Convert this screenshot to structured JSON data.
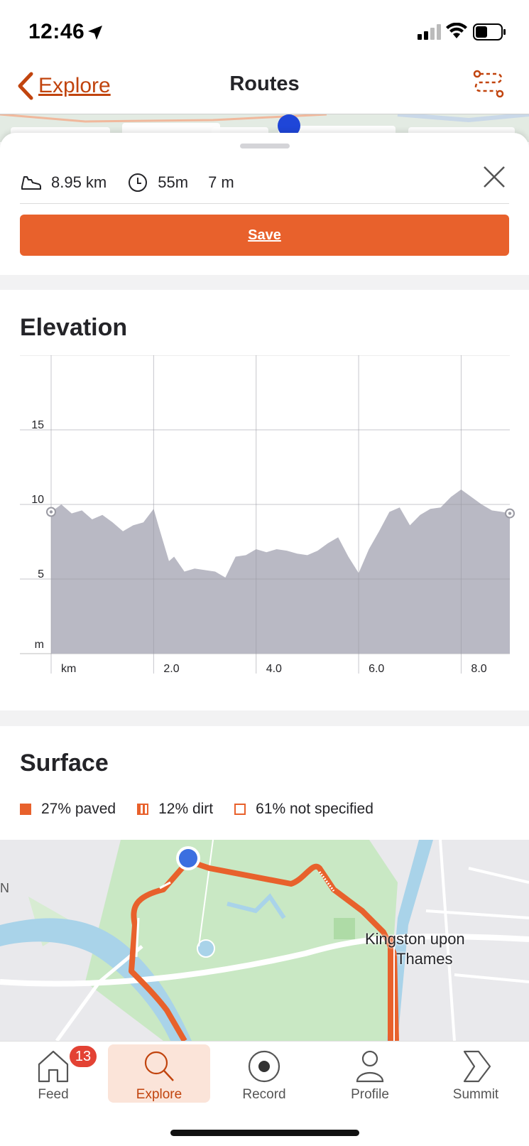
{
  "status": {
    "time": "12:46"
  },
  "nav": {
    "back_label": "Explore",
    "title": "Routes"
  },
  "route": {
    "distance": "8.95 km",
    "time": "55m",
    "elevation_gain": "7 m",
    "save_label": "Save"
  },
  "elevation": {
    "title": "Elevation",
    "chart_data": {
      "type": "area",
      "x_unit": "km",
      "y_unit": "m",
      "x_ticks": [
        "km",
        "2.0",
        "4.0",
        "6.0",
        "8.0"
      ],
      "y_ticks": [
        "15",
        "10",
        "5",
        "m"
      ],
      "ylim": [
        0,
        20
      ],
      "xlim": [
        0,
        8.95
      ],
      "grid": true,
      "series": [
        {
          "x": [
            0,
            0.2,
            0.4,
            0.6,
            0.8,
            1.0,
            1.2,
            1.4,
            1.6,
            1.8,
            2.0,
            2.1,
            2.3,
            2.4,
            2.6,
            2.8,
            3.0,
            3.2,
            3.4,
            3.6,
            3.8,
            4.0,
            4.2,
            4.4,
            4.6,
            4.8,
            5.0,
            5.2,
            5.4,
            5.6,
            5.8,
            6.0,
            6.2,
            6.4,
            6.6,
            6.8,
            7.0,
            7.2,
            7.4,
            7.6,
            7.8,
            8.0,
            8.2,
            8.4,
            8.6,
            8.8,
            8.95
          ],
          "y": [
            9.5,
            10.0,
            9.4,
            9.6,
            9.0,
            9.3,
            8.8,
            8.2,
            8.6,
            8.8,
            9.7,
            8.5,
            6.2,
            6.5,
            5.5,
            5.7,
            5.6,
            5.5,
            5.1,
            6.5,
            6.6,
            7.0,
            6.8,
            7.0,
            6.9,
            6.7,
            6.6,
            6.9,
            7.4,
            7.8,
            6.5,
            5.4,
            7.0,
            8.2,
            9.5,
            9.8,
            8.6,
            9.3,
            9.7,
            9.8,
            10.5,
            11.0,
            10.5,
            10.0,
            9.6,
            9.5,
            9.4
          ]
        }
      ]
    }
  },
  "surface": {
    "title": "Surface",
    "legend": [
      {
        "label": "27% paved",
        "kind": "paved"
      },
      {
        "label": "12% dirt",
        "kind": "dirt"
      },
      {
        "label": "61% not specified",
        "kind": "not-specified"
      }
    ],
    "map_label_line1": "Kingston upon",
    "map_label_line2": "Thames",
    "map_edge_letter": "N"
  },
  "tabs": {
    "feed": "Feed",
    "feed_badge": "13",
    "explore": "Explore",
    "record": "Record",
    "profile": "Profile",
    "summit": "Summit"
  },
  "colors": {
    "accent": "#e8612c",
    "accent_dark": "#c1440e",
    "chart_fill": "#b9b9c4"
  }
}
